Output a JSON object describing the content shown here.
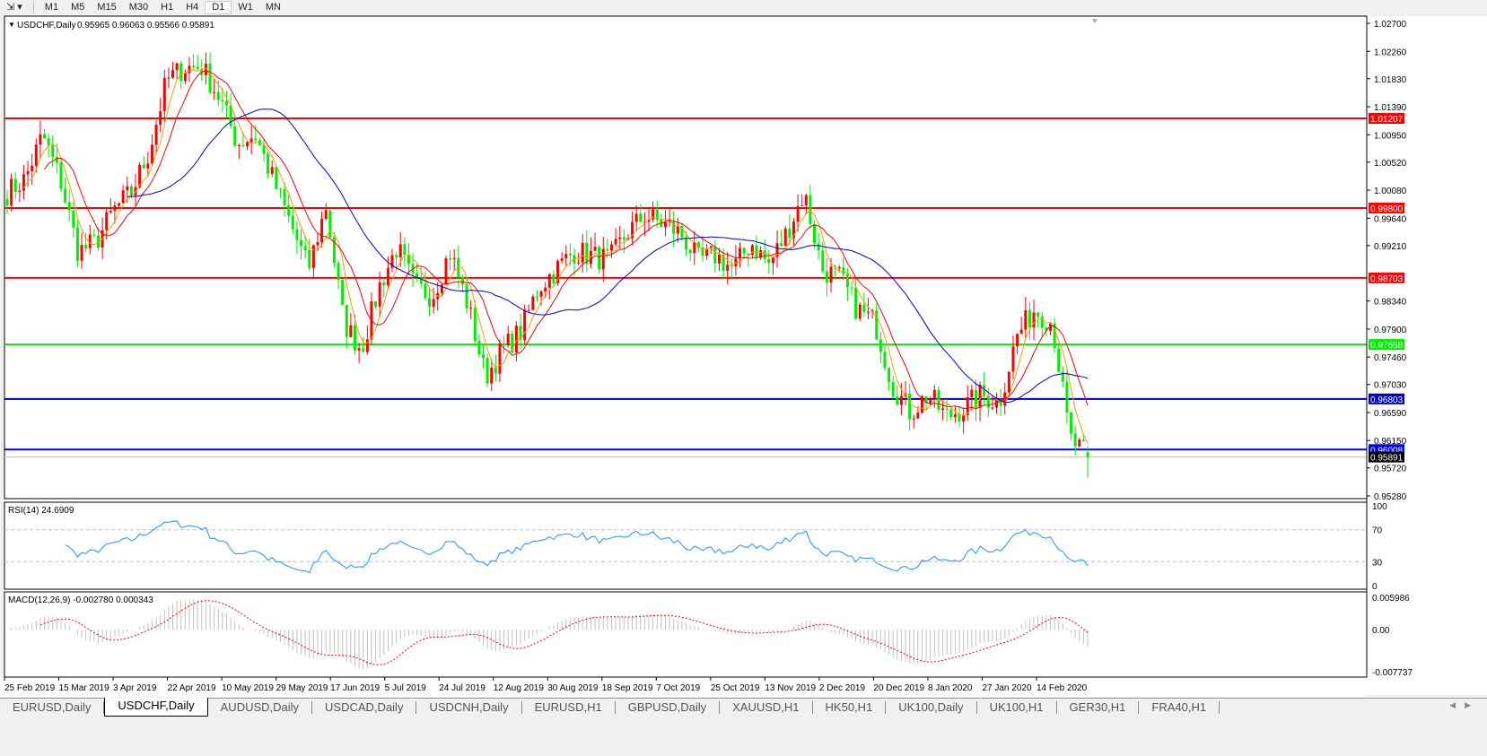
{
  "toolbar": {
    "icon": "line-tools-icon",
    "timeframes": [
      "M1",
      "M5",
      "M15",
      "M30",
      "H1",
      "H4",
      "D1",
      "W1",
      "MN"
    ],
    "active_timeframe": "D1"
  },
  "chart_header": {
    "symbol": "USDCHF,Daily",
    "ohlc": "0.95965 0.96063 0.95566 0.95891"
  },
  "price_axis": [
    "1.02700",
    "1.02260",
    "1.01830",
    "1.01390",
    "1.00950",
    "1.00520",
    "1.00080",
    "0.99640",
    "0.99210",
    "0.98340",
    "0.97900",
    "0.97460",
    "0.97030",
    "0.96590",
    "0.96150",
    "0.95720",
    "0.95280"
  ],
  "levels": [
    {
      "price": 1.01207,
      "label": "1.01207",
      "color": "#ff0000"
    },
    {
      "price": 0.998,
      "label": "0.99800",
      "color": "#ff0000"
    },
    {
      "price": 0.98703,
      "label": "0.98703",
      "color": "#ff0000"
    },
    {
      "price": 0.97658,
      "label": "0.97658",
      "color": "#00ee00"
    },
    {
      "price": 0.96803,
      "label": "0.96803",
      "color": "#0000cc"
    },
    {
      "price": 0.96008,
      "label": "0.96008",
      "color": "#0000ff"
    },
    {
      "price": 0.95891,
      "label": "0.95891",
      "color": "#000000"
    }
  ],
  "rsi": {
    "label": "RSI(14) 24.6909",
    "axis": [
      "100",
      "70",
      "30",
      "0"
    ]
  },
  "macd": {
    "label": "MACD(12,26,9) -0.002780 0.000343",
    "axis": [
      "0.005986",
      "0.00",
      "-0.007737"
    ]
  },
  "date_axis": [
    "25 Feb 2019",
    "15 Mar 2019",
    "3 Apr 2019",
    "22 Apr 2019",
    "10 May 2019",
    "29 May 2019",
    "17 Jun 2019",
    "5 Jul 2019",
    "24 Jul 2019",
    "12 Aug 2019",
    "30 Aug 2019",
    "18 Sep 2019",
    "7 Oct 2019",
    "25 Oct 2019",
    "13 Nov 2019",
    "2 Dec 2019",
    "20 Dec 2019",
    "8 Jan 2020",
    "27 Jan 2020",
    "14 Feb 2020"
  ],
  "tabs": [
    "EURUSD,Daily",
    "USDCHF,Daily",
    "AUDUSD,Daily",
    "USDCAD,Daily",
    "USDCNH,Daily",
    "EURUSD,H1",
    "GBPUSD,Daily",
    "XAUUSD,H1",
    "HK50,H1",
    "UK100,Daily",
    "UK100,H1",
    "GER30,H1",
    "FRA40,H1"
  ],
  "active_tab": "USDCHF,Daily",
  "chart_data": {
    "type": "candlestick",
    "symbol": "USDCHF",
    "timeframe": "Daily",
    "ylim": [
      0.9528,
      1.027
    ],
    "last_bar": {
      "open": 0.95965,
      "high": 0.96063,
      "low": 0.95566,
      "close": 0.95891
    },
    "approx_close_path": [
      1.0004,
      1.0025,
      1.0095,
      1.0025,
      0.9912,
      0.9926,
      0.9976,
      1.0004,
      1.0067,
      1.018,
      1.0201,
      1.0201,
      1.0152,
      1.0081,
      1.0095,
      1.0025,
      0.9955,
      0.9884,
      0.9983,
      0.98,
      0.9758,
      0.9856,
      0.9919,
      0.9856,
      0.9842,
      0.9912,
      0.9828,
      0.9715,
      0.9758,
      0.9786,
      0.9856,
      0.9884,
      0.9912,
      0.9905,
      0.9898,
      0.9941,
      0.9969,
      0.9955,
      0.9941,
      0.9898,
      0.9905,
      0.9884,
      0.9926,
      0.9891,
      0.9941,
      1.0004,
      0.9884,
      0.987,
      0.9821,
      0.98,
      0.9701,
      0.9659,
      0.9687,
      0.9652,
      0.9666,
      0.9687,
      0.9673,
      0.9779,
      0.9821,
      0.98,
      0.9617,
      0.95891
    ],
    "colors": {
      "bull": "#ff0000",
      "bear": "#00ee00",
      "ma_fast": "#ff9900",
      "ma_mid": "#ff0000",
      "ma_slow": "#0000cc",
      "rsi": "#1e90ff",
      "macd_hist": "#c0c0c0",
      "macd_signal": "#ff0000"
    }
  }
}
